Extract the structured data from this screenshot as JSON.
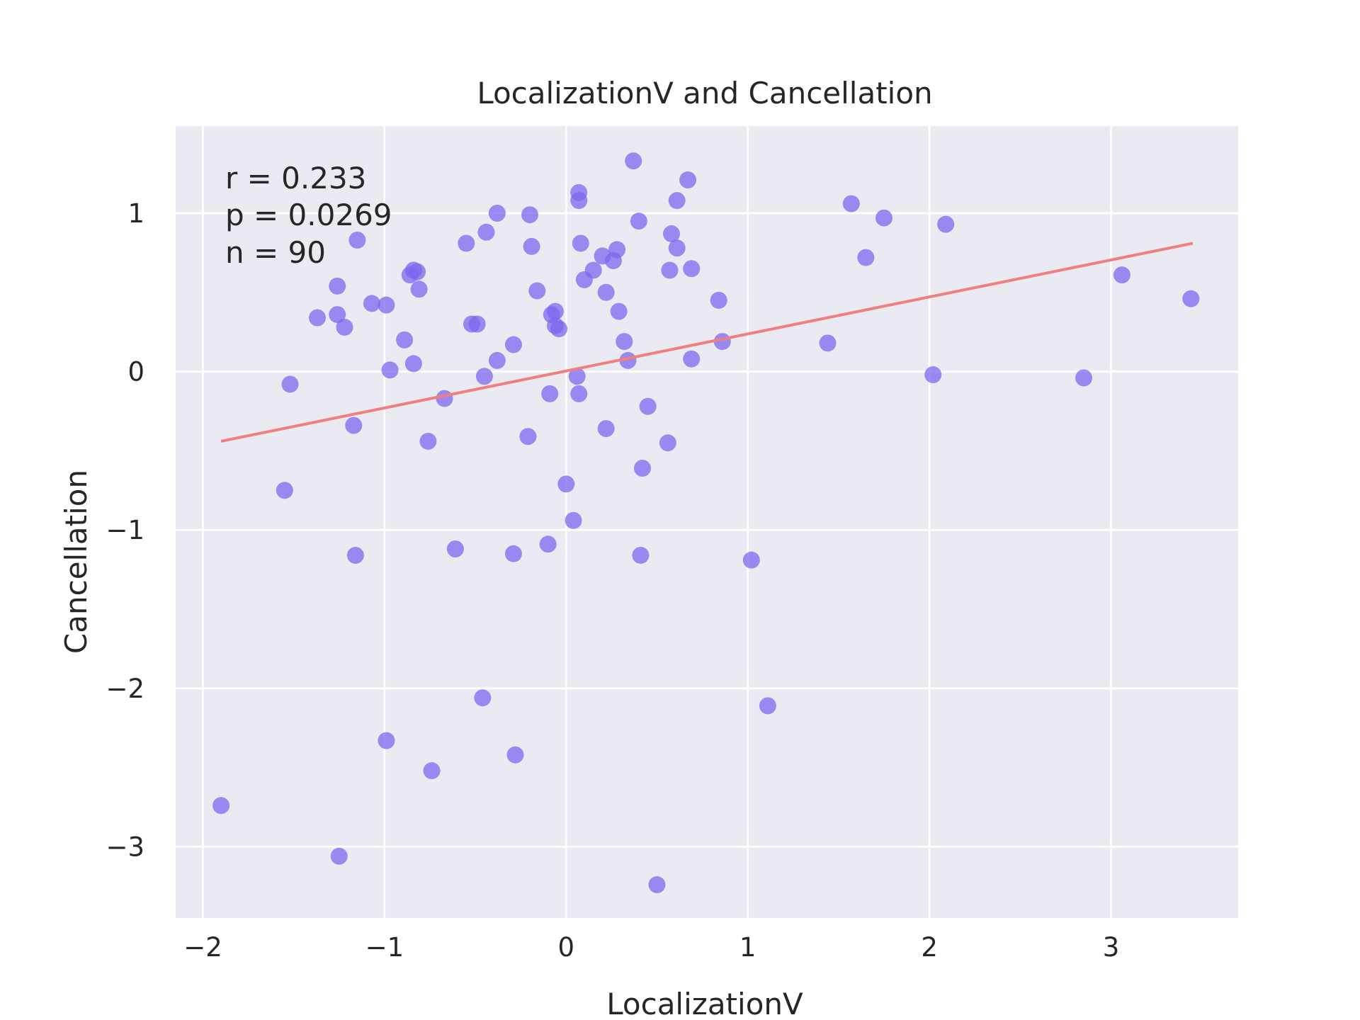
{
  "chart_data": {
    "type": "scatter",
    "title": "LocalizationV and Cancellation",
    "xlabel": "LocalizationV",
    "ylabel": "Cancellation",
    "xlim": [
      -2.15,
      3.7
    ],
    "ylim": [
      -3.45,
      1.55
    ],
    "xticks": [
      -2,
      -1,
      0,
      1,
      2,
      3
    ],
    "yticks": [
      -3,
      -2,
      -1,
      0,
      1
    ],
    "xtick_labels": [
      "−2",
      "−1",
      "0",
      "1",
      "2",
      "3"
    ],
    "ytick_labels": [
      "−3",
      "−2",
      "−1",
      "0",
      "1"
    ],
    "grid": true,
    "background": "#EAEAF2",
    "point_color": "#7B68EE",
    "line_color": "#F08080",
    "stats": {
      "r": "r = 0.233",
      "p": "p = 0.0269",
      "n": "n = 90"
    },
    "fit_line": {
      "x": [
        -1.9,
        3.45
      ],
      "y": [
        -0.44,
        0.81
      ]
    },
    "points": [
      [
        -1.9,
        -2.74
      ],
      [
        -1.55,
        -0.75
      ],
      [
        -1.52,
        -0.08
      ],
      [
        -1.37,
        0.34
      ],
      [
        -1.26,
        0.54
      ],
      [
        -1.26,
        0.36
      ],
      [
        -1.25,
        -3.06
      ],
      [
        -1.22,
        0.28
      ],
      [
        -1.17,
        -0.34
      ],
      [
        -1.16,
        -1.16
      ],
      [
        -1.15,
        0.83
      ],
      [
        -1.07,
        0.43
      ],
      [
        -0.99,
        0.42
      ],
      [
        -0.99,
        -2.33
      ],
      [
        -0.97,
        0.01
      ],
      [
        -0.89,
        0.2
      ],
      [
        -0.86,
        0.61
      ],
      [
        -0.84,
        0.64
      ],
      [
        -0.84,
        0.05
      ],
      [
        -0.82,
        0.63
      ],
      [
        -0.81,
        0.52
      ],
      [
        -0.76,
        -0.44
      ],
      [
        -0.74,
        -2.52
      ],
      [
        -0.67,
        -0.17
      ],
      [
        -0.61,
        -1.12
      ],
      [
        -0.55,
        0.81
      ],
      [
        -0.52,
        0.3
      ],
      [
        -0.49,
        0.3
      ],
      [
        -0.46,
        -2.06
      ],
      [
        -0.45,
        -0.03
      ],
      [
        -0.44,
        0.88
      ],
      [
        -0.38,
        1.0
      ],
      [
        -0.38,
        0.07
      ],
      [
        -0.29,
        0.17
      ],
      [
        -0.29,
        -1.15
      ],
      [
        -0.28,
        -2.42
      ],
      [
        -0.21,
        -0.41
      ],
      [
        -0.2,
        0.99
      ],
      [
        -0.19,
        0.79
      ],
      [
        -0.16,
        0.51
      ],
      [
        -0.1,
        -1.09
      ],
      [
        -0.09,
        -0.14
      ],
      [
        -0.08,
        0.36
      ],
      [
        -0.06,
        0.38
      ],
      [
        -0.06,
        0.29
      ],
      [
        -0.04,
        0.27
      ],
      [
        0.0,
        -0.71
      ],
      [
        0.04,
        -0.94
      ],
      [
        0.06,
        -0.03
      ],
      [
        0.07,
        1.08
      ],
      [
        0.07,
        1.13
      ],
      [
        0.07,
        -0.14
      ],
      [
        0.08,
        0.81
      ],
      [
        0.1,
        0.58
      ],
      [
        0.15,
        0.64
      ],
      [
        0.2,
        0.73
      ],
      [
        0.22,
        0.5
      ],
      [
        0.22,
        -0.36
      ],
      [
        0.26,
        0.7
      ],
      [
        0.28,
        0.77
      ],
      [
        0.29,
        0.38
      ],
      [
        0.32,
        0.19
      ],
      [
        0.34,
        0.07
      ],
      [
        0.37,
        1.33
      ],
      [
        0.4,
        0.95
      ],
      [
        0.41,
        -1.16
      ],
      [
        0.42,
        -0.61
      ],
      [
        0.45,
        -0.22
      ],
      [
        0.5,
        -3.24
      ],
      [
        0.56,
        -0.45
      ],
      [
        0.57,
        0.64
      ],
      [
        0.58,
        0.87
      ],
      [
        0.61,
        1.08
      ],
      [
        0.61,
        0.78
      ],
      [
        0.67,
        1.21
      ],
      [
        0.69,
        0.65
      ],
      [
        0.69,
        0.08
      ],
      [
        0.84,
        0.45
      ],
      [
        0.86,
        0.19
      ],
      [
        1.02,
        -1.19
      ],
      [
        1.11,
        -2.11
      ],
      [
        1.44,
        0.18
      ],
      [
        1.57,
        1.06
      ],
      [
        1.65,
        0.72
      ],
      [
        1.75,
        0.97
      ],
      [
        2.02,
        -0.02
      ],
      [
        2.09,
        0.93
      ],
      [
        2.85,
        -0.04
      ],
      [
        3.06,
        0.61
      ],
      [
        3.44,
        0.46
      ]
    ]
  }
}
